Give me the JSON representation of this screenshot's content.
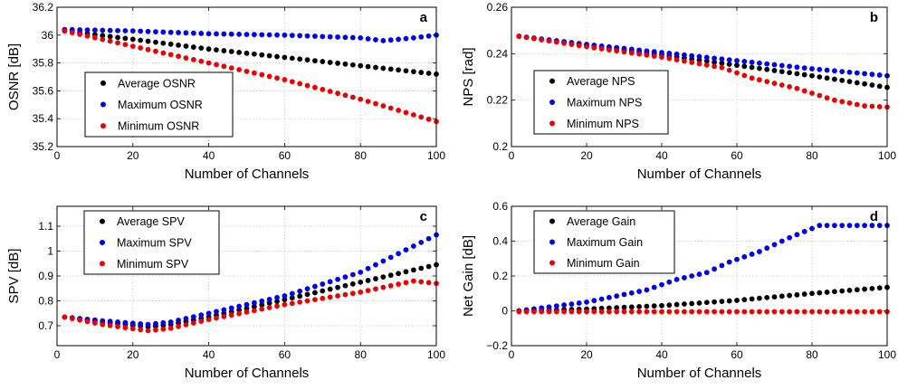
{
  "chart_data": [
    {
      "type": "scatter",
      "panel_label": "a",
      "xlabel": "Number of Channels",
      "ylabel": "OSNR [dB]",
      "xlim": [
        0,
        100
      ],
      "ylim": [
        35.2,
        36.2
      ],
      "xticks": [
        "0",
        "20",
        "40",
        "60",
        "80",
        "100"
      ],
      "yticks": [
        "35.2",
        "35.4",
        "35.6",
        "35.8",
        "36",
        "36.2"
      ],
      "grid": true,
      "legend": "lower-left",
      "x_range": [
        2,
        100
      ],
      "x_step": 2,
      "series": [
        {
          "name": "Average OSNR",
          "color": "#000000",
          "anchors": [
            [
              2,
              36.03
            ],
            [
              20,
              35.97
            ],
            [
              40,
              35.9
            ],
            [
              60,
              35.84
            ],
            [
              80,
              35.78
            ],
            [
              100,
              35.72
            ]
          ]
        },
        {
          "name": "Maximum OSNR",
          "color": "#0000ee",
          "anchors": [
            [
              2,
              36.04
            ],
            [
              20,
              36.03
            ],
            [
              40,
              36.01
            ],
            [
              60,
              36.0
            ],
            [
              80,
              35.98
            ],
            [
              86,
              35.96
            ],
            [
              94,
              35.98
            ],
            [
              100,
              36.0
            ]
          ]
        },
        {
          "name": "Minimum OSNR",
          "color": "#ee0000",
          "anchors": [
            [
              2,
              36.03
            ],
            [
              20,
              35.92
            ],
            [
              40,
              35.8
            ],
            [
              60,
              35.68
            ],
            [
              80,
              35.54
            ],
            [
              100,
              35.38
            ]
          ]
        }
      ]
    },
    {
      "type": "scatter",
      "panel_label": "b",
      "xlabel": "Number of Channels",
      "ylabel": "NPS [rad]",
      "xlim": [
        0,
        100
      ],
      "ylim": [
        0.2,
        0.26
      ],
      "xticks": [
        "0",
        "20",
        "40",
        "60",
        "80",
        "100"
      ],
      "yticks": [
        "0.2",
        "0.22",
        "0.24",
        "0.26"
      ],
      "grid": true,
      "legend": "lower-left",
      "x_range": [
        2,
        100
      ],
      "x_step": 2,
      "series": [
        {
          "name": "Average NPS",
          "color": "#000000",
          "anchors": [
            [
              2,
              0.2475
            ],
            [
              20,
              0.2435
            ],
            [
              40,
              0.2395
            ],
            [
              60,
              0.235
            ],
            [
              80,
              0.2305
            ],
            [
              100,
              0.2255
            ]
          ]
        },
        {
          "name": "Maximum NPS",
          "color": "#0000ee",
          "anchors": [
            [
              2,
              0.2475
            ],
            [
              20,
              0.244
            ],
            [
              40,
              0.2405
            ],
            [
              60,
              0.237
            ],
            [
              80,
              0.2335
            ],
            [
              100,
              0.2305
            ]
          ]
        },
        {
          "name": "Minimum NPS",
          "color": "#ee0000",
          "anchors": [
            [
              2,
              0.2475
            ],
            [
              20,
              0.243
            ],
            [
              40,
              0.2385
            ],
            [
              56,
              0.234
            ],
            [
              64,
              0.2295
            ],
            [
              76,
              0.225
            ],
            [
              86,
              0.22
            ],
            [
              94,
              0.2175
            ],
            [
              100,
              0.217
            ]
          ]
        }
      ]
    },
    {
      "type": "scatter",
      "panel_label": "c",
      "xlabel": "Number of Channels",
      "ylabel": "SPV [dB]",
      "xlim": [
        0,
        100
      ],
      "ylim": [
        0.62,
        1.18
      ],
      "xticks": [
        "0",
        "20",
        "40",
        "60",
        "80",
        "100"
      ],
      "yticks": [
        "0.7",
        "0.8",
        "0.9",
        "1",
        "1.1"
      ],
      "grid": true,
      "legend": "upper-left",
      "x_range": [
        2,
        100
      ],
      "x_step": 2,
      "series": [
        {
          "name": "Average SPV",
          "color": "#000000",
          "anchors": [
            [
              2,
              0.735
            ],
            [
              12,
              0.715
            ],
            [
              24,
              0.695
            ],
            [
              30,
              0.705
            ],
            [
              40,
              0.735
            ],
            [
              60,
              0.805
            ],
            [
              80,
              0.875
            ],
            [
              100,
              0.945
            ]
          ]
        },
        {
          "name": "Maximum SPV",
          "color": "#0000ee",
          "anchors": [
            [
              2,
              0.735
            ],
            [
              12,
              0.72
            ],
            [
              24,
              0.705
            ],
            [
              30,
              0.715
            ],
            [
              40,
              0.75
            ],
            [
              60,
              0.82
            ],
            [
              80,
              0.915
            ],
            [
              100,
              1.065
            ]
          ]
        },
        {
          "name": "Minimum SPV",
          "color": "#ee0000",
          "anchors": [
            [
              2,
              0.735
            ],
            [
              12,
              0.705
            ],
            [
              24,
              0.68
            ],
            [
              30,
              0.69
            ],
            [
              40,
              0.725
            ],
            [
              60,
              0.785
            ],
            [
              80,
              0.835
            ],
            [
              94,
              0.88
            ],
            [
              100,
              0.87
            ]
          ]
        }
      ]
    },
    {
      "type": "scatter",
      "panel_label": "d",
      "xlabel": "Number of Channels",
      "ylabel": "Net Gain [dB]",
      "xlim": [
        0,
        100
      ],
      "ylim": [
        -0.2,
        0.6
      ],
      "xticks": [
        "0",
        "20",
        "40",
        "60",
        "80",
        "100"
      ],
      "yticks": [
        "−0.2",
        "0",
        "0.2",
        "0.4",
        "0.6"
      ],
      "grid": true,
      "legend": "upper-left",
      "x_range": [
        2,
        100
      ],
      "x_step": 2,
      "series": [
        {
          "name": "Average Gain",
          "color": "#000000",
          "anchors": [
            [
              2,
              0.0
            ],
            [
              20,
              0.01
            ],
            [
              40,
              0.03
            ],
            [
              60,
              0.06
            ],
            [
              80,
              0.1
            ],
            [
              100,
              0.135
            ]
          ]
        },
        {
          "name": "Maximum Gain",
          "color": "#0000ee",
          "anchors": [
            [
              2,
              0.0
            ],
            [
              20,
              0.05
            ],
            [
              36,
              0.12
            ],
            [
              44,
              0.18
            ],
            [
              52,
              0.22
            ],
            [
              58,
              0.28
            ],
            [
              66,
              0.34
            ],
            [
              74,
              0.42
            ],
            [
              82,
              0.49
            ],
            [
              100,
              0.49
            ]
          ]
        },
        {
          "name": "Minimum Gain",
          "color": "#ee0000",
          "anchors": [
            [
              2,
              -0.005
            ],
            [
              100,
              -0.005
            ]
          ]
        }
      ]
    }
  ]
}
